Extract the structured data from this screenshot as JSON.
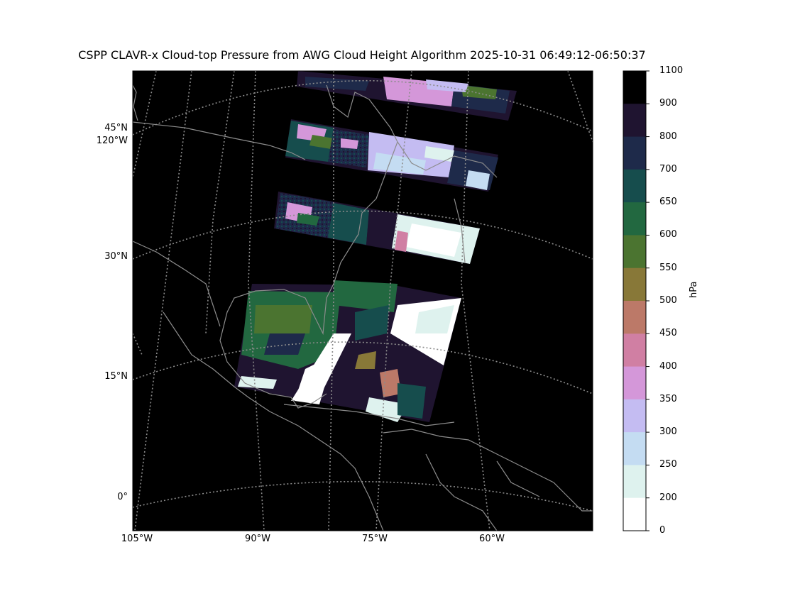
{
  "title": "CSPP CLAVR-x Cloud-top Pressure from AWG Cloud Height Algorithm 2025-10-31 06:49:12-06:50:37",
  "map": {
    "lat_labels": [
      "45°N",
      "30°N",
      "15°N",
      "0°"
    ],
    "extra_lon_label": "120°W",
    "lon_labels": [
      "105°W",
      "90°W",
      "75°W",
      "60°W"
    ],
    "background_color": "#000000",
    "coast_color": "#8c8c8c",
    "grid_color": "#8c8c8c"
  },
  "colorbar": {
    "unit_label": "hPa",
    "ticks": [
      "1100",
      "900",
      "800",
      "700",
      "650",
      "600",
      "550",
      "500",
      "450",
      "400",
      "350",
      "300",
      "250",
      "200",
      "0"
    ],
    "colors": [
      "#000000",
      "#1f1430",
      "#1e2a4a",
      "#164d4d",
      "#226840",
      "#4b7430",
      "#887838",
      "#bc7968",
      "#d07fa3",
      "#d497d9",
      "#c4bcf2",
      "#c4dcf2",
      "#def2ee",
      "#ffffff"
    ]
  }
}
